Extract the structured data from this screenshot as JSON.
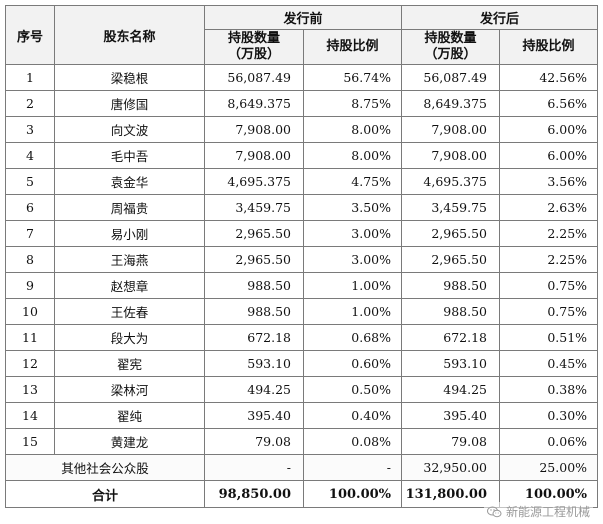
{
  "table": {
    "headers": {
      "index": "序号",
      "name": "股东名称",
      "before": "发行前",
      "after": "发行后",
      "shares_line1": "持股数量",
      "shares_line2": "（万股）",
      "ratio": "持股比例"
    },
    "rows": [
      {
        "index": "1",
        "name": "梁稳根",
        "before_shares": "56,087.49",
        "before_ratio": "56.74%",
        "after_shares": "56,087.49",
        "after_ratio": "42.56%"
      },
      {
        "index": "2",
        "name": "唐修国",
        "before_shares": "8,649.375",
        "before_ratio": "8.75%",
        "after_shares": "8,649.375",
        "after_ratio": "6.56%"
      },
      {
        "index": "3",
        "name": "向文波",
        "before_shares": "7,908.00",
        "before_ratio": "8.00%",
        "after_shares": "7,908.00",
        "after_ratio": "6.00%"
      },
      {
        "index": "4",
        "name": "毛中吾",
        "before_shares": "7,908.00",
        "before_ratio": "8.00%",
        "after_shares": "7,908.00",
        "after_ratio": "6.00%"
      },
      {
        "index": "5",
        "name": "袁金华",
        "before_shares": "4,695.375",
        "before_ratio": "4.75%",
        "after_shares": "4,695.375",
        "after_ratio": "3.56%"
      },
      {
        "index": "6",
        "name": "周福贵",
        "before_shares": "3,459.75",
        "before_ratio": "3.50%",
        "after_shares": "3,459.75",
        "after_ratio": "2.63%"
      },
      {
        "index": "7",
        "name": "易小刚",
        "before_shares": "2,965.50",
        "before_ratio": "3.00%",
        "after_shares": "2,965.50",
        "after_ratio": "2.25%"
      },
      {
        "index": "8",
        "name": "王海燕",
        "before_shares": "2,965.50",
        "before_ratio": "3.00%",
        "after_shares": "2,965.50",
        "after_ratio": "2.25%"
      },
      {
        "index": "9",
        "name": "赵想章",
        "before_shares": "988.50",
        "before_ratio": "1.00%",
        "after_shares": "988.50",
        "after_ratio": "0.75%"
      },
      {
        "index": "10",
        "name": "王佐春",
        "before_shares": "988.50",
        "before_ratio": "1.00%",
        "after_shares": "988.50",
        "after_ratio": "0.75%"
      },
      {
        "index": "11",
        "name": "段大为",
        "before_shares": "672.18",
        "before_ratio": "0.68%",
        "after_shares": "672.18",
        "after_ratio": "0.51%"
      },
      {
        "index": "12",
        "name": "翟宪",
        "before_shares": "593.10",
        "before_ratio": "0.60%",
        "after_shares": "593.10",
        "after_ratio": "0.45%"
      },
      {
        "index": "13",
        "name": "梁林河",
        "before_shares": "494.25",
        "before_ratio": "0.50%",
        "after_shares": "494.25",
        "after_ratio": "0.38%"
      },
      {
        "index": "14",
        "name": "翟纯",
        "before_shares": "395.40",
        "before_ratio": "0.40%",
        "after_shares": "395.40",
        "after_ratio": "0.30%"
      },
      {
        "index": "15",
        "name": "黄建龙",
        "before_shares": "79.08",
        "before_ratio": "0.08%",
        "after_shares": "79.08",
        "after_ratio": "0.06%"
      }
    ],
    "other": {
      "label": "其他社会公众股",
      "before_shares": "-",
      "before_ratio": "-",
      "after_shares": "32,950.00",
      "after_ratio": "25.00%"
    },
    "total": {
      "label": "合计",
      "before_shares": "98,850.00",
      "before_ratio": "100.00%",
      "after_shares": "131,800.00",
      "after_ratio": "100.00%"
    }
  },
  "watermark": {
    "text": "新能源工程机械",
    "icon": "wechat-icon"
  },
  "colors": {
    "border": "#7a7a7a",
    "header_bg": "#f2f2f2",
    "watermark": "#9a9a9a"
  }
}
